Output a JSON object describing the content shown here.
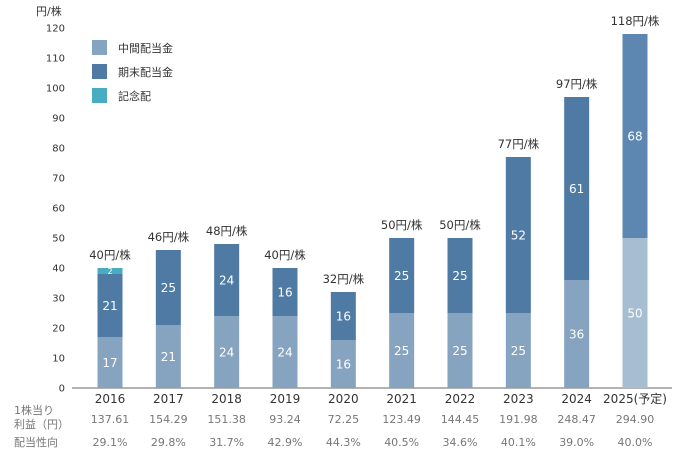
{
  "chart_data": {
    "type": "bar",
    "stacked": true,
    "y_unit_label": "円/株",
    "ylim": [
      0,
      120
    ],
    "yticks": [
      0,
      10,
      20,
      30,
      40,
      50,
      60,
      70,
      80,
      90,
      100,
      110,
      120
    ],
    "categories": [
      "2016",
      "2017",
      "2018",
      "2019",
      "2020",
      "2021",
      "2022",
      "2023",
      "2024",
      "2025(予定)"
    ],
    "series": [
      {
        "name": "中間配当金",
        "color": "#86a3bf",
        "forecast_color": "#a7bdd2",
        "values": [
          17,
          21,
          24,
          24,
          16,
          25,
          25,
          25,
          36,
          50
        ]
      },
      {
        "name": "期末配当金",
        "color": "#4e7aa3",
        "forecast_color": "#5d87b0",
        "values": [
          21,
          25,
          24,
          16,
          16,
          25,
          25,
          52,
          61,
          68
        ]
      },
      {
        "name": "記念配",
        "color": "#48adc1",
        "values": [
          2,
          0,
          0,
          0,
          0,
          0,
          0,
          0,
          0,
          0
        ]
      }
    ],
    "totals": [
      "40円/株",
      "46円/株",
      "48円/株",
      "40円/株",
      "32円/株",
      "50円/株",
      "50円/株",
      "77円/株",
      "97円/株",
      "118円/株"
    ],
    "table": {
      "row1_label_line1": "1株当り",
      "row1_label_line2": "利益（円）",
      "eps": [
        "137.61",
        "154.29",
        "151.38",
        "93.24",
        "72.25",
        "123.49",
        "144.45",
        "191.98",
        "248.47",
        "294.90"
      ],
      "row2_label": "配当性向",
      "payout": [
        "29.1%",
        "29.8%",
        "31.7%",
        "42.9%",
        "44.3%",
        "40.5%",
        "34.6%",
        "40.1%",
        "39.0%",
        "40.0%"
      ]
    }
  }
}
